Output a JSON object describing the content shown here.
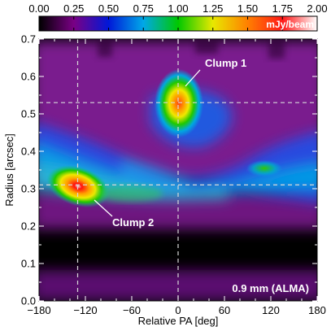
{
  "chart_data": {
    "type": "heatmap",
    "colorbar": {
      "ticks": [
        "0.00",
        "0.25",
        "0.50",
        "0.75",
        "1.00",
        "1.25",
        "1.50",
        "1.75",
        "2.00"
      ],
      "range": [
        0,
        2
      ],
      "unit": "mJy/beam",
      "colormap": [
        "#000000",
        "#7a0085",
        "#0018d8",
        "#00a8e8",
        "#00c800",
        "#e8e800",
        "#ff8000",
        "#ff1818",
        "#ffffff"
      ]
    },
    "x_axis": {
      "label": "Relative PA [deg]",
      "range": [
        -180,
        180
      ],
      "ticks": [
        "−180",
        "−120",
        "−60",
        "0",
        "60",
        "120",
        "180"
      ],
      "tick_values": [
        -180,
        -120,
        -60,
        0,
        60,
        120,
        180
      ]
    },
    "y_axis": {
      "label": "Radius [arcsec]",
      "range": [
        0.0,
        0.7
      ],
      "ticks": [
        "0.0",
        "0.1",
        "0.2",
        "0.3",
        "0.4",
        "0.5",
        "0.6",
        "0.7"
      ],
      "tick_values": [
        0.0,
        0.1,
        0.2,
        0.3,
        0.4,
        0.5,
        0.6,
        0.7
      ]
    },
    "reference_lines": {
      "vertical_pa": [
        -130,
        0
      ],
      "horizontal_radius": [
        0.31,
        0.53
      ]
    },
    "annotations": [
      {
        "text": "Clump 1",
        "pa": 3,
        "radius": 0.53,
        "peak_mjy": 2.0
      },
      {
        "text": "Clump 2",
        "pa": -130,
        "radius": 0.31,
        "peak_mjy": 2.0
      }
    ],
    "label_text": "0.9 mm (ALMA)",
    "ridge": {
      "description_values": [
        {
          "pa": -180,
          "radius": 0.38,
          "flux": 0.55
        },
        {
          "pa": -140,
          "radius": 0.34,
          "flux": 0.7
        },
        {
          "pa": -60,
          "radius": 0.3,
          "flux": 0.75
        },
        {
          "pa": 0,
          "radius": 0.29,
          "flux": 0.65
        },
        {
          "pa": 60,
          "radius": 0.33,
          "flux": 0.6
        },
        {
          "pa": 110,
          "radius": 0.36,
          "flux": 0.85
        },
        {
          "pa": 180,
          "radius": 0.38,
          "flux": 0.55
        }
      ]
    }
  }
}
